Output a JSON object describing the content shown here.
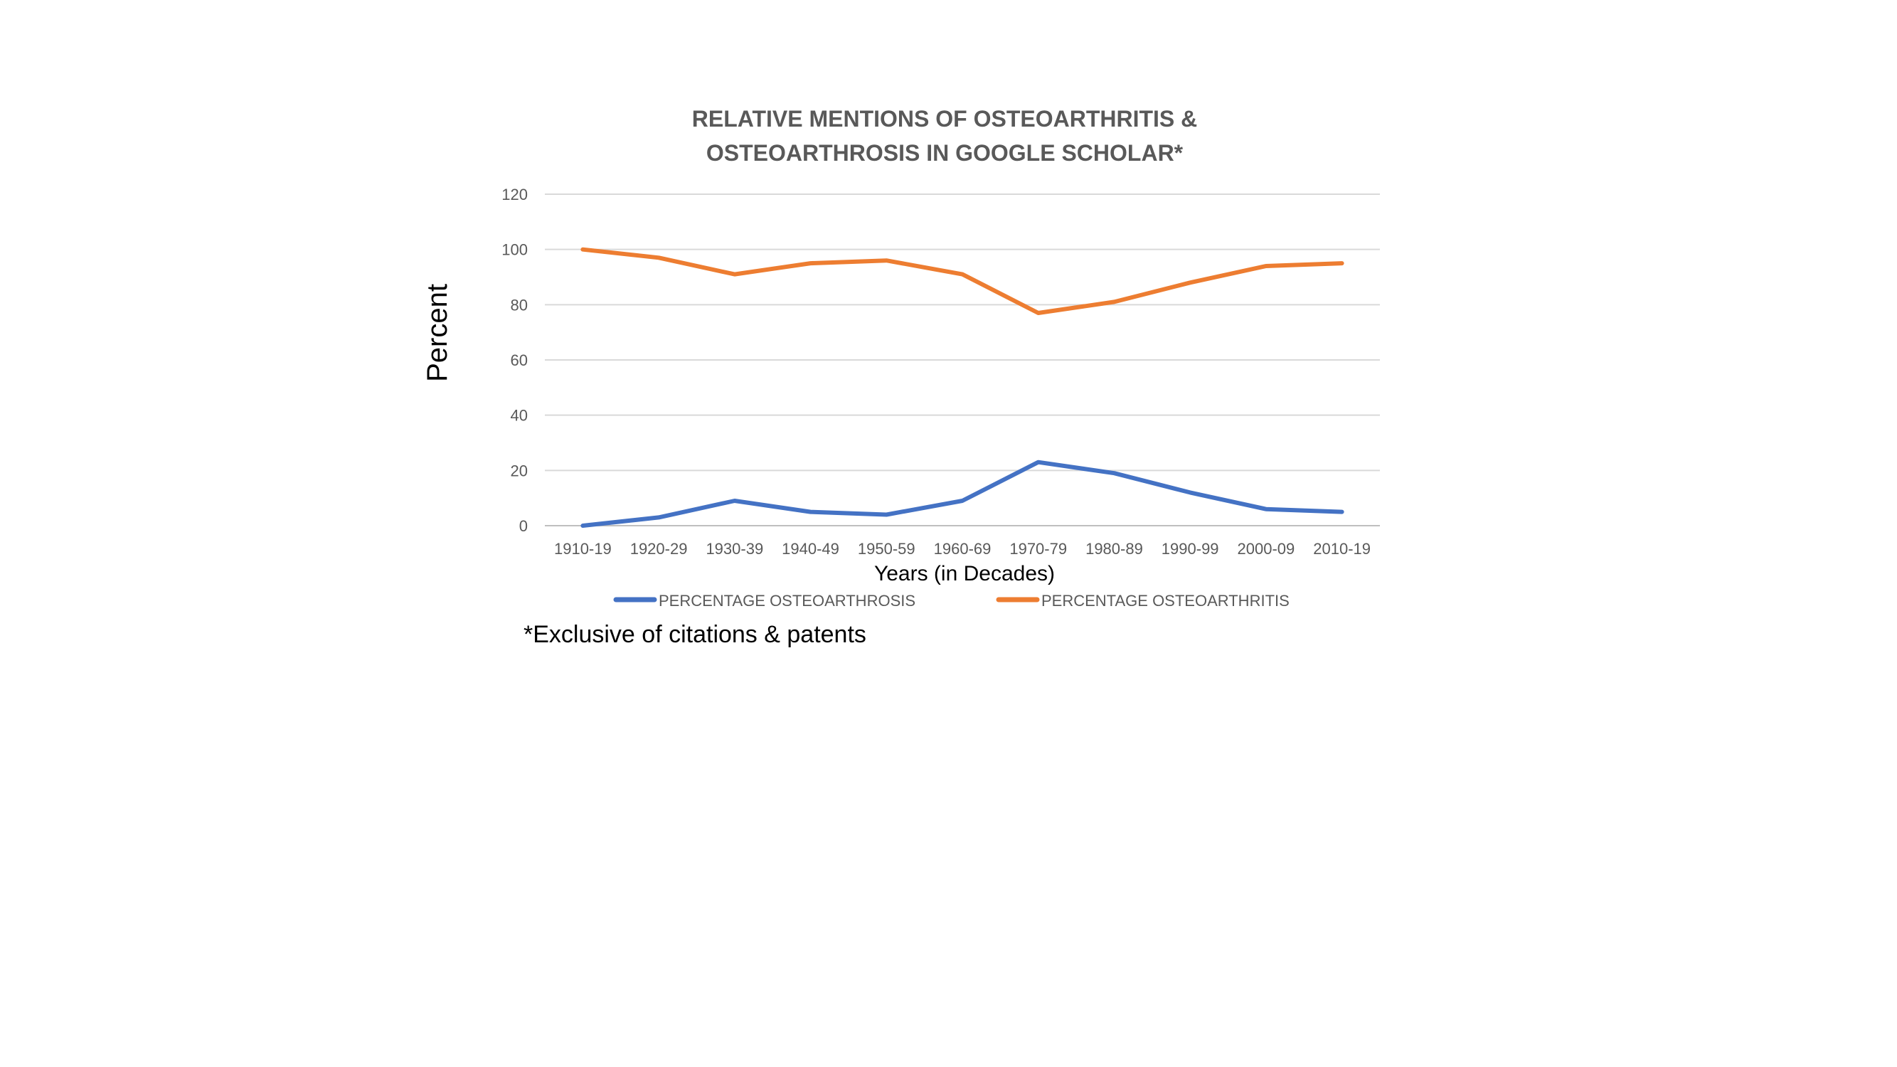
{
  "chart_data": {
    "type": "line",
    "title_lines": [
      "RELATIVE MENTIONS OF OSTEOARTHRITIS  &",
      "OSTEOARTHROSIS IN GOOGLE SCHOLAR*"
    ],
    "xlabel": "Years (in Decades)",
    "ylabel": "Percent",
    "ylim": [
      0,
      120
    ],
    "yticks": [
      0,
      20,
      40,
      60,
      80,
      100,
      120
    ],
    "grid": true,
    "legend_position": "bottom",
    "categories": [
      "1910-19",
      "1920-29",
      "1930-39",
      "1940-49",
      "1950-59",
      "1960-69",
      "1970-79",
      "1980-89",
      "1990-99",
      "2000-09",
      "2010-19"
    ],
    "series": [
      {
        "name": "PERCENTAGE OSTEOARTHROSIS",
        "color": "#4472c4",
        "values": [
          0,
          3,
          9,
          5,
          4,
          9,
          23,
          19,
          12,
          6,
          5
        ]
      },
      {
        "name": "PERCENTAGE OSTEOARTHRITIS",
        "color": "#ed7d31",
        "values": [
          100,
          97,
          91,
          95,
          96,
          91,
          77,
          81,
          88,
          94,
          95
        ]
      }
    ],
    "footnote": "*Exclusive of citations & patents"
  }
}
